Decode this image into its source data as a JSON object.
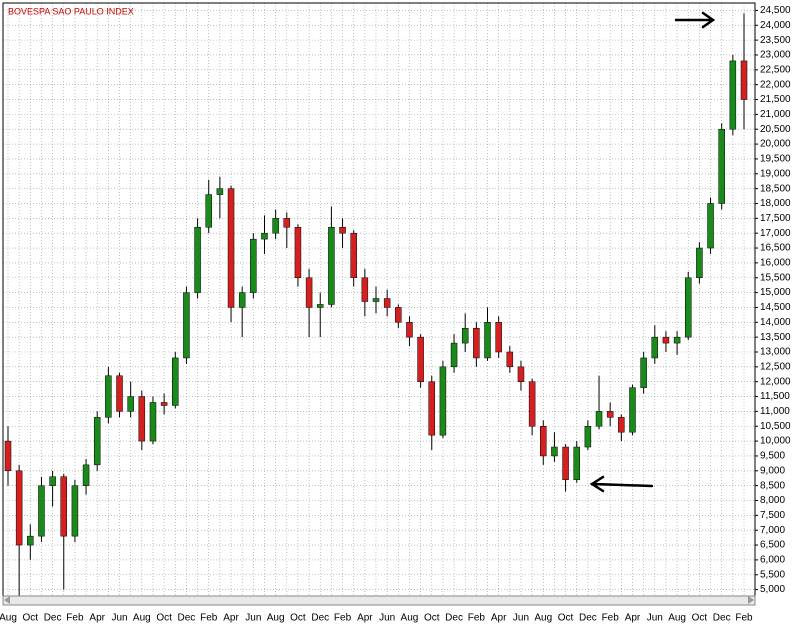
{
  "chart_data": {
    "type": "candlestick",
    "title": "BOVESPA SAO PAULO INDEX",
    "categories": [
      "Aug",
      null,
      "Oct",
      null,
      "Dec",
      null,
      "Feb",
      null,
      "Apr",
      null,
      "Jun",
      null,
      "Aug",
      null,
      "Oct",
      null,
      "Dec",
      null,
      "Feb",
      null,
      "Apr",
      null,
      "Jun",
      null,
      "Aug",
      null,
      "Oct",
      null,
      "Dec",
      null,
      "Feb",
      null,
      "Apr",
      null,
      "Jun",
      null,
      "Aug",
      null,
      "Oct",
      null,
      "Dec",
      null,
      "Feb",
      null,
      "Apr",
      null,
      "Jun",
      null,
      "Aug",
      null,
      "Oct",
      null,
      "Dec",
      null,
      "Feb",
      null,
      "Apr",
      null,
      "Jun",
      null,
      "Aug",
      null,
      "Oct",
      null,
      "Dec",
      null,
      "Feb"
    ],
    "open": [
      10000,
      9000,
      6500,
      6800,
      8500,
      8800,
      6800,
      8500,
      9200,
      10800,
      12200,
      11000,
      11500,
      10000,
      11300,
      11200,
      12800,
      15000,
      17200,
      18300,
      18500,
      14500,
      15000,
      16800,
      17000,
      17500,
      17200,
      15500,
      14500,
      14600,
      17200,
      17000,
      15500,
      14700,
      14800,
      14500,
      14000,
      13500,
      12000,
      10200,
      12500,
      13300,
      13800,
      12800,
      14000,
      13000,
      12500,
      12000,
      10500,
      9500,
      9800,
      8700,
      9800,
      10500,
      11000,
      10800,
      10300,
      11800,
      12800,
      13500,
      13300,
      13500,
      15500,
      16500,
      18000,
      20500,
      22800
    ],
    "high": [
      10500,
      9200,
      7200,
      8800,
      9000,
      8900,
      8700,
      9400,
      11000,
      12500,
      12300,
      12000,
      11700,
      11500,
      11600,
      13000,
      15200,
      17500,
      18800,
      18900,
      18600,
      15200,
      17000,
      17600,
      17800,
      17700,
      17300,
      15800,
      15000,
      17900,
      17500,
      17100,
      15800,
      15200,
      15100,
      14600,
      14200,
      13600,
      12200,
      12700,
      13600,
      14300,
      14000,
      14500,
      14200,
      13200,
      12700,
      12100,
      10700,
      10300,
      9900,
      10000,
      10700,
      12200,
      11300,
      10900,
      11900,
      13000,
      13900,
      13700,
      13700,
      15700,
      16700,
      18200,
      20700,
      23000,
      24400
    ],
    "low": [
      8500,
      4800,
      6000,
      6600,
      7800,
      5000,
      6600,
      8200,
      9000,
      10600,
      10800,
      10800,
      9700,
      9900,
      10900,
      11100,
      12600,
      14800,
      17000,
      17500,
      14000,
      13500,
      14800,
      16300,
      16800,
      16500,
      15200,
      13500,
      13500,
      14500,
      16500,
      15200,
      14200,
      14300,
      14200,
      13800,
      13200,
      11800,
      9700,
      10100,
      12300,
      13000,
      12500,
      12700,
      12800,
      12300,
      11700,
      10200,
      9200,
      9300,
      8300,
      8600,
      9700,
      10400,
      10500,
      10000,
      10200,
      11600,
      12600,
      13000,
      12900,
      13400,
      15300,
      16300,
      17800,
      20300,
      20500
    ],
    "close": [
      9000,
      6500,
      6800,
      8500,
      8800,
      6800,
      8500,
      9200,
      10800,
      12200,
      11000,
      11500,
      10000,
      11300,
      11200,
      12800,
      15000,
      17200,
      18300,
      18500,
      14500,
      15000,
      16800,
      17000,
      17500,
      17200,
      15500,
      14500,
      14600,
      17200,
      17000,
      15500,
      14700,
      14800,
      14500,
      14000,
      13500,
      12000,
      10200,
      12500,
      13300,
      13800,
      12800,
      14000,
      13000,
      12500,
      12000,
      10500,
      9500,
      9800,
      8700,
      9800,
      10500,
      11000,
      10800,
      10300,
      11800,
      12800,
      13500,
      13300,
      13500,
      15500,
      16500,
      18000,
      20500,
      22800,
      21500
    ],
    "up_color": "#1a8a1a",
    "down_color": "#d42020",
    "ylim": [
      4650,
      24750
    ],
    "yticks": [
      {
        "value": 5000,
        "label": "5,000"
      },
      {
        "value": 5500,
        "label": "5,500"
      },
      {
        "value": 6000,
        "label": "6,000"
      },
      {
        "value": 6500,
        "label": "6,500"
      },
      {
        "value": 7000,
        "label": "7,000"
      },
      {
        "value": 7500,
        "label": "7,500"
      },
      {
        "value": 8000,
        "label": "8,000"
      },
      {
        "value": 8500,
        "label": "8,500"
      },
      {
        "value": 9000,
        "label": "9,000"
      },
      {
        "value": 9500,
        "label": "9,500"
      },
      {
        "value": 10000,
        "label": "10,000"
      },
      {
        "value": 10500,
        "label": "10,500"
      },
      {
        "value": 11000,
        "label": "11,000"
      },
      {
        "value": 11500,
        "label": "11,500"
      },
      {
        "value": 12000,
        "label": "12,000"
      },
      {
        "value": 12500,
        "label": "12,500"
      },
      {
        "value": 13000,
        "label": "13,000"
      },
      {
        "value": 13500,
        "label": "13,500"
      },
      {
        "value": 14000,
        "label": "14,000"
      },
      {
        "value": 14500,
        "label": "14,500"
      },
      {
        "value": 15000,
        "label": "15,000"
      },
      {
        "value": 15500,
        "label": "15,500"
      },
      {
        "value": 16000,
        "label": "16,000"
      },
      {
        "value": 16500,
        "label": "16,500"
      },
      {
        "value": 17000,
        "label": "17,000"
      },
      {
        "value": 17500,
        "label": "17,500"
      },
      {
        "value": 18000,
        "label": "18,000"
      },
      {
        "value": 18500,
        "label": "18,500"
      },
      {
        "value": 19000,
        "label": "19,000"
      },
      {
        "value": 19500,
        "label": "19,500"
      },
      {
        "value": 20000,
        "label": "20,000"
      },
      {
        "value": 20500,
        "label": "20,500"
      },
      {
        "value": 21000,
        "label": "21,000"
      },
      {
        "value": 21500,
        "label": "21,500"
      },
      {
        "value": 22000,
        "label": "22,000"
      },
      {
        "value": 22500,
        "label": "22,500"
      },
      {
        "value": 23000,
        "label": "23,000"
      },
      {
        "value": 23500,
        "label": "23,500"
      },
      {
        "value": 24000,
        "label": "24,000"
      },
      {
        "value": 24500,
        "label": "24,500"
      }
    ],
    "grid": true
  }
}
